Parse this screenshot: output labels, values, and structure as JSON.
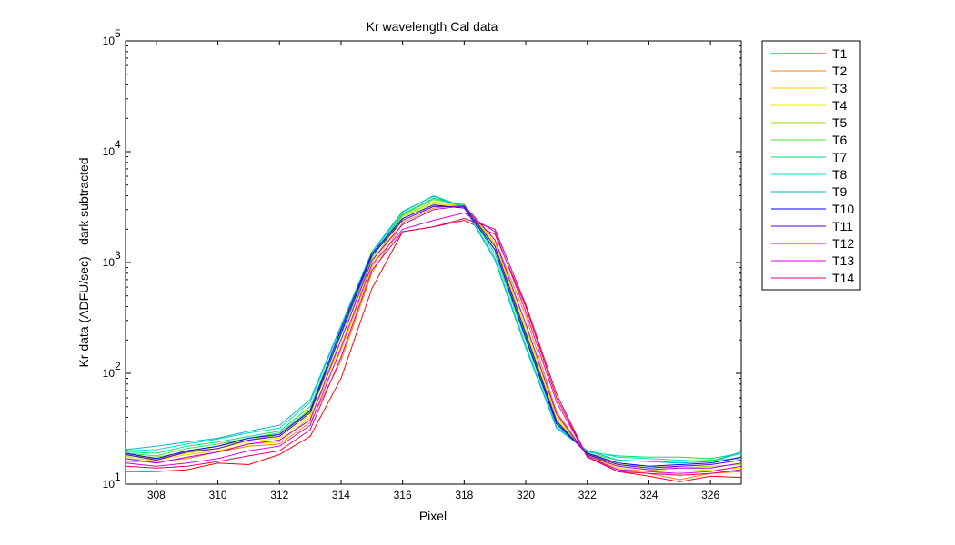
{
  "chart_data": {
    "type": "line",
    "title": "Kr wavelength Cal data",
    "xlabel": "Pixel",
    "ylabel": "Kr data (ADFU/sec) - dark subtracted",
    "xlim": [
      307,
      327
    ],
    "ylim": [
      10,
      100000
    ],
    "yscale": "log",
    "grid": false,
    "legend_position": "outside-right-top",
    "x_ticks": [
      308,
      310,
      312,
      314,
      316,
      318,
      320,
      322,
      324,
      326
    ],
    "y_ticks": [
      {
        "value": 10,
        "base": "10",
        "exp": "1"
      },
      {
        "value": 100,
        "base": "10",
        "exp": "2"
      },
      {
        "value": 1000,
        "base": "10",
        "exp": "3"
      },
      {
        "value": 10000,
        "base": "10",
        "exp": "4"
      },
      {
        "value": 100000,
        "base": "10",
        "exp": "5"
      }
    ],
    "x": [
      307,
      308,
      309,
      310,
      311,
      312,
      313,
      314,
      315,
      316,
      317,
      318,
      319,
      320,
      321,
      322,
      323,
      324,
      325,
      326,
      327
    ],
    "series": [
      {
        "name": "T1",
        "color": "#ff0000",
        "values": [
          13,
          13,
          13.5,
          15.5,
          15,
          18.5,
          27,
          90,
          580,
          1900,
          2100,
          2400,
          1800,
          400,
          60,
          17.5,
          13,
          11.8,
          10.5,
          11.8,
          11.5
        ]
      },
      {
        "name": "T2",
        "color": "#ff8000",
        "values": [
          16,
          16,
          17,
          19.5,
          22,
          23,
          36,
          130,
          800,
          2300,
          3100,
          3300,
          1600,
          330,
          45,
          18,
          13.5,
          12.5,
          11,
          12.5,
          13
        ]
      },
      {
        "name": "T3",
        "color": "#ffc800",
        "values": [
          17,
          16.5,
          18.5,
          20,
          23,
          24,
          40,
          160,
          900,
          2500,
          3300,
          3300,
          1500,
          280,
          42,
          18,
          14,
          13,
          12,
          12.5,
          13.5
        ]
      },
      {
        "name": "T4",
        "color": "#e8e800",
        "values": [
          17.5,
          17,
          19,
          21,
          24,
          26,
          42,
          180,
          950,
          2600,
          3400,
          3300,
          1450,
          260,
          40,
          18.5,
          14.5,
          13.5,
          13,
          13.5,
          14
        ]
      },
      {
        "name": "T5",
        "color": "#a0e000",
        "values": [
          18,
          17.5,
          19.5,
          22,
          25,
          28,
          45,
          200,
          1000,
          2650,
          3500,
          3350,
          1400,
          240,
          38,
          19,
          15,
          14.5,
          14,
          14.5,
          15
        ]
      },
      {
        "name": "T6",
        "color": "#40e040",
        "values": [
          19,
          18,
          21,
          23,
          26,
          29,
          47,
          220,
          1100,
          2700,
          3700,
          3300,
          1300,
          220,
          36,
          19,
          16.5,
          16,
          16,
          16.5,
          17
        ]
      },
      {
        "name": "T7",
        "color": "#00e070",
        "values": [
          19.5,
          19,
          22,
          24,
          27,
          30,
          50,
          240,
          1150,
          2750,
          3800,
          3300,
          1200,
          200,
          35,
          19.5,
          18,
          17.5,
          17.5,
          17,
          19
        ]
      },
      {
        "name": "T8",
        "color": "#00e0c0",
        "values": [
          20,
          20.5,
          23,
          25.5,
          29,
          32,
          55,
          260,
          1200,
          2850,
          4000,
          3200,
          1100,
          180,
          33,
          20,
          17.5,
          17,
          16.5,
          16,
          19
        ]
      },
      {
        "name": "T9",
        "color": "#00b8c8",
        "values": [
          20.5,
          22,
          24,
          26,
          30,
          34,
          58,
          270,
          1250,
          2900,
          3950,
          3150,
          1050,
          170,
          32,
          20,
          16.5,
          16,
          15.5,
          16,
          19.5
        ]
      },
      {
        "name": "T10",
        "color": "#0000ff",
        "values": [
          19,
          17,
          20,
          22,
          26,
          28,
          46,
          250,
          1200,
          2500,
          3300,
          3100,
          1300,
          210,
          35,
          19,
          15.5,
          14.5,
          15,
          15.5,
          17.5
        ]
      },
      {
        "name": "T11",
        "color": "#5000c0",
        "values": [
          18.5,
          16.5,
          19.5,
          21,
          25,
          27,
          44,
          230,
          1150,
          2400,
          3200,
          3200,
          1400,
          230,
          37,
          18.5,
          15,
          14,
          14.5,
          15,
          16.5
        ]
      },
      {
        "name": "T12",
        "color": "#b000e0",
        "values": [
          17,
          15.5,
          17.5,
          19.5,
          23,
          25,
          38,
          200,
          1050,
          2200,
          3000,
          3250,
          1600,
          280,
          43,
          18,
          14.5,
          13.5,
          14,
          14,
          15.5
        ]
      },
      {
        "name": "T13",
        "color": "#e000e0",
        "values": [
          15.5,
          14.5,
          15.5,
          17,
          20,
          22,
          34,
          170,
          950,
          2000,
          2400,
          2800,
          1900,
          360,
          55,
          17.5,
          13.5,
          13,
          12.5,
          13,
          14.5
        ]
      },
      {
        "name": "T14",
        "color": "#e00070",
        "values": [
          14.5,
          14,
          14.5,
          16,
          18,
          20,
          31,
          140,
          850,
          1900,
          2100,
          2500,
          2000,
          420,
          65,
          17.5,
          13,
          12.5,
          12,
          12.5,
          13.5
        ]
      }
    ]
  }
}
